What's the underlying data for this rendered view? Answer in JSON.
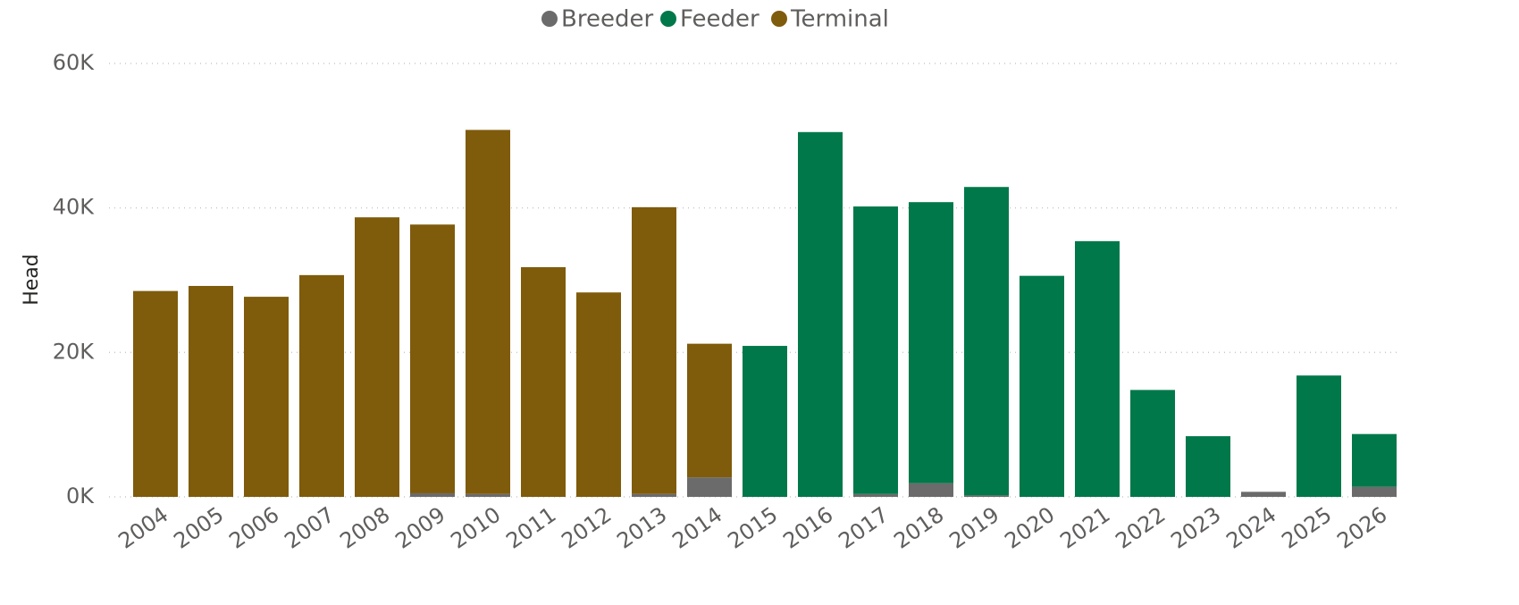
{
  "chart_data": {
    "type": "stacked_bar",
    "y_label": "Head",
    "categories": [
      "2004",
      "2005",
      "2006",
      "2007",
      "2008",
      "2009",
      "2010",
      "2011",
      "2012",
      "2013",
      "2014",
      "2015",
      "2016",
      "2017",
      "2018",
      "2019",
      "2020",
      "2021",
      "2022",
      "2023",
      "2024",
      "2025",
      "2026"
    ],
    "series": [
      {
        "name": "Breeder",
        "color": "#6b6b6b",
        "values": [
          0,
          0,
          0,
          0,
          0,
          500,
          400,
          0,
          0,
          400,
          2700,
          0,
          0,
          400,
          1900,
          200,
          0,
          0,
          0,
          0,
          700,
          0,
          1400
        ]
      },
      {
        "name": "Feeder",
        "color": "#00784a",
        "values": [
          0,
          0,
          0,
          0,
          0,
          0,
          0,
          0,
          0,
          0,
          0,
          20900,
          50500,
          39800,
          38900,
          42700,
          30600,
          35400,
          14800,
          8400,
          0,
          16800,
          7300
        ]
      },
      {
        "name": "Terminal",
        "color": "#7f5b0c",
        "values": [
          28500,
          29200,
          27700,
          30700,
          38700,
          37200,
          50400,
          31800,
          28300,
          39700,
          18500,
          0,
          0,
          0,
          0,
          0,
          0,
          0,
          0,
          0,
          0,
          0,
          0
        ]
      }
    ],
    "ylim": [
      0,
      60000
    ],
    "yticks": [
      {
        "value": 0,
        "label": "0K"
      },
      {
        "value": 20000,
        "label": "20K"
      },
      {
        "value": 40000,
        "label": "40K"
      },
      {
        "value": 60000,
        "label": "60K"
      }
    ],
    "grid": true,
    "legend": "top"
  }
}
